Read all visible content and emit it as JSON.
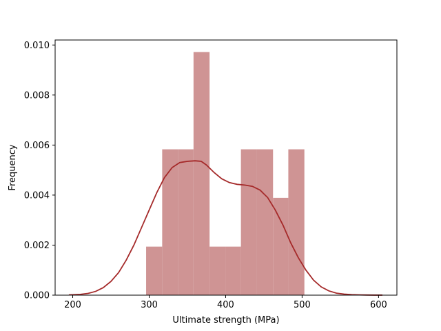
{
  "chart_data": {
    "type": "histogram",
    "title": "",
    "xlabel": "Ultimate strength (MPa)",
    "ylabel": "Frequency",
    "xlim": [
      177,
      624
    ],
    "ylim": [
      0,
      0.0102
    ],
    "grid": false,
    "legend": "none",
    "x_ticks": [
      200,
      300,
      400,
      500,
      600
    ],
    "y_ticks": [
      0.0,
      0.002,
      0.004,
      0.006,
      0.008,
      0.01
    ],
    "y_tick_labels": [
      "0.000",
      "0.002",
      "0.004",
      "0.006",
      "0.008",
      "0.010"
    ],
    "bins": [
      {
        "x0": 296,
        "x1": 317,
        "density": 0.00194
      },
      {
        "x0": 317,
        "x1": 338,
        "density": 0.00583
      },
      {
        "x0": 338,
        "x1": 358,
        "density": 0.00583
      },
      {
        "x0": 358,
        "x1": 379,
        "density": 0.00972
      },
      {
        "x0": 379,
        "x1": 400,
        "density": 0.00194
      },
      {
        "x0": 400,
        "x1": 420,
        "density": 0.00194
      },
      {
        "x0": 420,
        "x1": 441,
        "density": 0.00583
      },
      {
        "x0": 441,
        "x1": 462,
        "density": 0.00583
      },
      {
        "x0": 462,
        "x1": 482,
        "density": 0.00389
      },
      {
        "x0": 482,
        "x1": 503,
        "density": 0.00583
      }
    ],
    "kde": {
      "x": [
        195,
        210,
        220,
        230,
        240,
        250,
        260,
        270,
        280,
        290,
        300,
        310,
        320,
        330,
        340,
        350,
        360,
        368,
        375,
        385,
        395,
        405,
        415,
        425,
        435,
        445,
        455,
        465,
        475,
        485,
        495,
        505,
        515,
        525,
        535,
        545,
        555,
        565,
        575,
        585,
        595,
        605
      ],
      "y": [
        1e-05,
        3e-05,
        7e-05,
        0.00015,
        0.0003,
        0.00055,
        0.0009,
        0.0014,
        0.002,
        0.0027,
        0.0034,
        0.0041,
        0.0047,
        0.0051,
        0.0053,
        0.00535,
        0.00537,
        0.00535,
        0.0052,
        0.0049,
        0.00465,
        0.0045,
        0.00443,
        0.0044,
        0.00435,
        0.0042,
        0.0039,
        0.0034,
        0.0028,
        0.0021,
        0.0015,
        0.001,
        0.0006,
        0.00033,
        0.00017,
        8e-05,
        4e-05,
        2e-05,
        1e-05,
        5e-06,
        2e-06,
        1e-06
      ]
    },
    "colors": {
      "bars": "#cf9494",
      "kde_line": "#a52a2a",
      "axes": "#000000"
    }
  }
}
